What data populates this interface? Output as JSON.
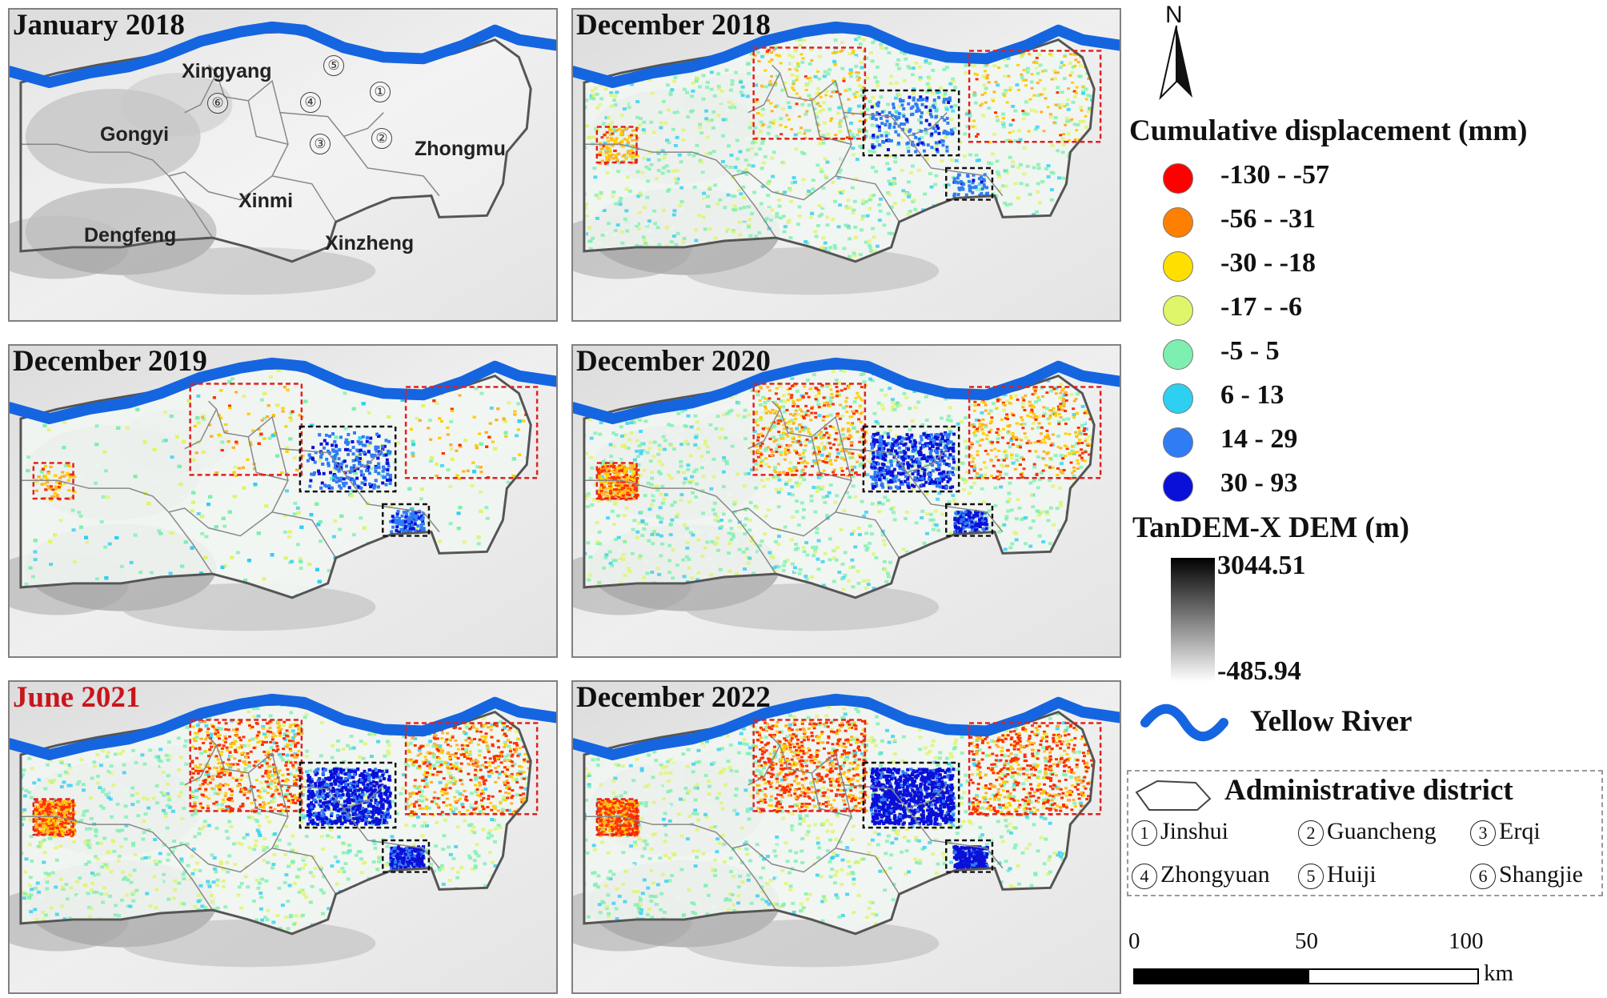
{
  "panels": [
    {
      "title": "January 2018",
      "highlight": false
    },
    {
      "title": "December 2018",
      "highlight": false
    },
    {
      "title": "December 2019",
      "highlight": false
    },
    {
      "title": "December 2020",
      "highlight": false
    },
    {
      "title": "June 2021",
      "highlight": true
    },
    {
      "title": "December 2022",
      "highlight": false
    }
  ],
  "map_labels": {
    "xingyang": "Xingyang",
    "gongyi": "Gongyi",
    "zhongmu": "Zhongmu",
    "xinmi": "Xinmi",
    "dengfeng": "Dengfeng",
    "xinzheng": "Xinzheng"
  },
  "district_numbers": [
    "①",
    "②",
    "③",
    "④",
    "⑤",
    "⑥"
  ],
  "north": "N",
  "legend": {
    "displacement_title": "Cumulative displacement (mm)",
    "classes": [
      {
        "label": "-130 - -57",
        "color": "#ff0000"
      },
      {
        "label": "-56 - -31",
        "color": "#ff8000"
      },
      {
        "label": "-30 - -18",
        "color": "#ffdf00"
      },
      {
        "label": "-17 - -6",
        "color": "#dff56a"
      },
      {
        "label": "-5 - 5",
        "color": "#7df0b0"
      },
      {
        "label": "6 - 13",
        "color": "#2ed0f2"
      },
      {
        "label": "14 - 29",
        "color": "#2f7cf5"
      },
      {
        "label": "30 - 93",
        "color": "#0a10d8"
      }
    ],
    "dem_title": "TanDEM-X DEM (m)",
    "dem_max": "3044.51",
    "dem_min": "-485.94",
    "river": "Yellow River",
    "admin_title": "Administrative district",
    "admin_districts": [
      {
        "num": "1",
        "name": "Jinshui"
      },
      {
        "num": "2",
        "name": "Guancheng"
      },
      {
        "num": "3",
        "name": "Erqi"
      },
      {
        "num": "4",
        "name": "Zhongyuan"
      },
      {
        "num": "5",
        "name": "Huiji"
      },
      {
        "num": "6",
        "name": "Shangjie"
      }
    ],
    "scale": {
      "ticks": [
        "0",
        "50",
        "100"
      ],
      "unit": "km"
    }
  },
  "colors": {
    "river": "#1565e0",
    "red_box": "#e02020",
    "black_box": "#111111"
  }
}
